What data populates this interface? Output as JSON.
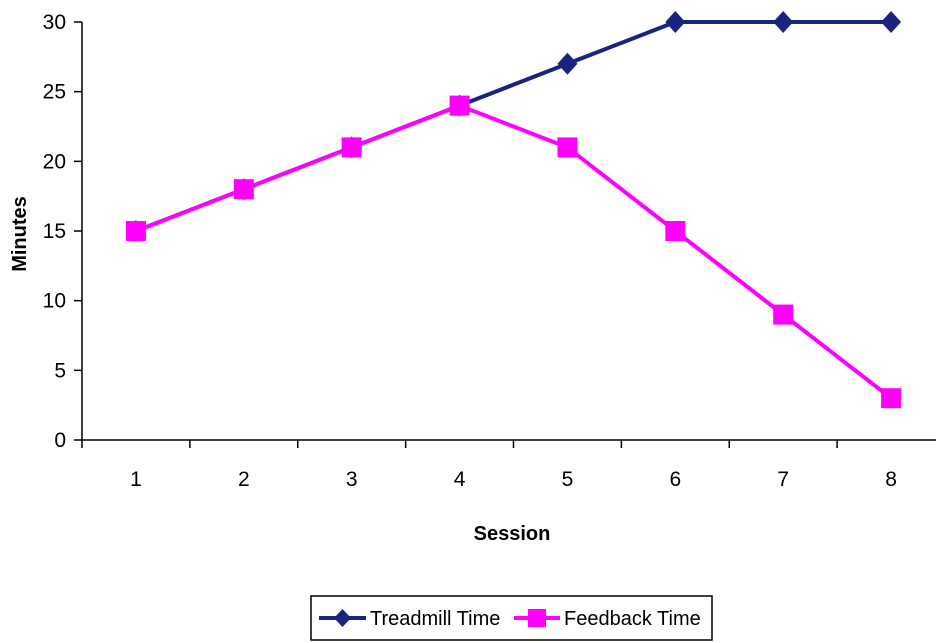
{
  "chart_data": {
    "type": "line",
    "title": "",
    "xlabel": "Session",
    "ylabel": "Minutes",
    "categories": [
      "1",
      "2",
      "3",
      "4",
      "5",
      "6",
      "7",
      "8"
    ],
    "ylim": [
      0,
      30
    ],
    "yticks": [
      "0",
      "5",
      "10",
      "15",
      "20",
      "25",
      "30"
    ],
    "grid": false,
    "legend_position": "bottom",
    "series": [
      {
        "name": "Treadmill Time",
        "values": [
          15,
          18,
          21,
          24,
          27,
          30,
          30,
          30
        ],
        "color": "#1a237e",
        "marker": "diamond"
      },
      {
        "name": "Feedback Time",
        "values": [
          15,
          18,
          21,
          24,
          21,
          15,
          9,
          3
        ],
        "color": "#ff00ff",
        "marker": "square"
      }
    ]
  }
}
